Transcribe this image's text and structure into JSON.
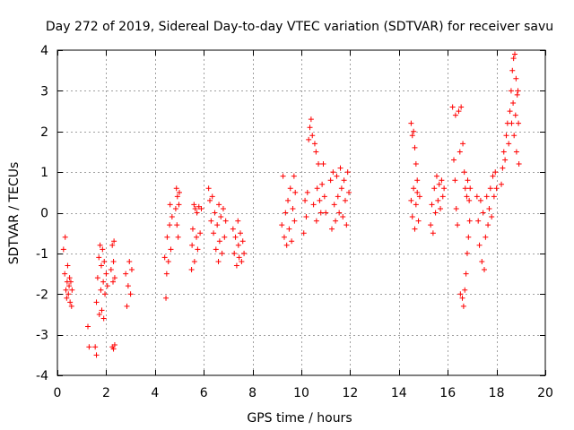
{
  "chart_data": {
    "type": "scatter",
    "title": "Day 272 of 2019, Sidereal Day-to-day VTEC variation (SDTVAR) for receiver savu",
    "xlabel": "GPS time / hours",
    "ylabel": "SDTVAR / TECUs",
    "xlim": [
      0,
      20
    ],
    "ylim": [
      -4,
      4
    ],
    "xticks": [
      0,
      2,
      4,
      6,
      8,
      10,
      12,
      14,
      16,
      18,
      20
    ],
    "yticks": [
      -4,
      -3,
      -2,
      -1,
      0,
      1,
      2,
      3,
      4
    ],
    "xtick_labels": [
      "0",
      "2",
      "4",
      "6",
      "8",
      "10",
      "12",
      "14",
      "16",
      "18",
      "20"
    ],
    "ytick_labels": [
      "-4",
      "-3",
      "-2",
      "-1",
      "0",
      "1",
      "2",
      "3",
      "4"
    ],
    "grid": true,
    "marker": "+",
    "color": "#ff0000",
    "series": [
      {
        "name": "savu",
        "points": [
          [
            0.25,
            -0.9
          ],
          [
            0.3,
            -1.5
          ],
          [
            0.32,
            -0.6
          ],
          [
            0.35,
            -1.9
          ],
          [
            0.38,
            -2.1
          ],
          [
            0.4,
            -1.7
          ],
          [
            0.42,
            -1.3
          ],
          [
            0.45,
            -2.0
          ],
          [
            0.48,
            -1.8
          ],
          [
            0.5,
            -1.6
          ],
          [
            0.52,
            -2.2
          ],
          [
            0.55,
            -1.7
          ],
          [
            0.58,
            -2.3
          ],
          [
            0.6,
            -1.9
          ],
          [
            1.25,
            -2.8
          ],
          [
            1.3,
            -3.3
          ],
          [
            1.55,
            -3.3
          ],
          [
            1.6,
            -3.5
          ],
          [
            1.6,
            -2.2
          ],
          [
            1.65,
            -1.6
          ],
          [
            1.7,
            -1.1
          ],
          [
            1.72,
            -2.5
          ],
          [
            1.75,
            -0.8
          ],
          [
            1.78,
            -1.9
          ],
          [
            1.8,
            -1.3
          ],
          [
            1.82,
            -2.4
          ],
          [
            1.85,
            -0.9
          ],
          [
            1.88,
            -1.7
          ],
          [
            1.9,
            -2.6
          ],
          [
            1.92,
            -1.2
          ],
          [
            1.95,
            -2.0
          ],
          [
            2.0,
            -1.5
          ],
          [
            2.05,
            -1.8
          ],
          [
            2.2,
            -1.4
          ],
          [
            2.25,
            -0.8
          ],
          [
            2.28,
            -1.7
          ],
          [
            2.3,
            -1.2
          ],
          [
            2.32,
            -0.7
          ],
          [
            2.35,
            -1.6
          ],
          [
            2.25,
            -3.3
          ],
          [
            2.3,
            -3.35
          ],
          [
            2.35,
            -3.25
          ],
          [
            2.8,
            -1.5
          ],
          [
            2.85,
            -2.3
          ],
          [
            2.9,
            -1.8
          ],
          [
            2.95,
            -1.2
          ],
          [
            3.0,
            -2.0
          ],
          [
            3.05,
            -1.4
          ],
          [
            4.4,
            -1.1
          ],
          [
            4.45,
            -2.1
          ],
          [
            4.48,
            -1.5
          ],
          [
            4.5,
            -0.6
          ],
          [
            4.55,
            -1.2
          ],
          [
            4.6,
            -0.3
          ],
          [
            4.62,
            0.2
          ],
          [
            4.65,
            -0.9
          ],
          [
            4.7,
            -0.1
          ],
          [
            4.85,
            0.1
          ],
          [
            4.88,
            0.6
          ],
          [
            4.9,
            -0.3
          ],
          [
            4.92,
            0.4
          ],
          [
            4.95,
            -0.6
          ],
          [
            4.98,
            0.2
          ],
          [
            5.0,
            0.5
          ],
          [
            5.5,
            -1.4
          ],
          [
            5.52,
            -0.8
          ],
          [
            5.55,
            -0.4
          ],
          [
            5.6,
            0.2
          ],
          [
            5.62,
            -1.2
          ],
          [
            5.65,
            0.1
          ],
          [
            5.7,
            -0.6
          ],
          [
            5.72,
            0.0
          ],
          [
            5.75,
            -0.9
          ],
          [
            5.8,
            0.15
          ],
          [
            5.85,
            -0.5
          ],
          [
            5.9,
            0.1
          ],
          [
            6.2,
            0.6
          ],
          [
            6.25,
            0.3
          ],
          [
            6.3,
            -0.2
          ],
          [
            6.35,
            0.4
          ],
          [
            6.4,
            -0.5
          ],
          [
            6.45,
            0.0
          ],
          [
            6.5,
            -0.9
          ],
          [
            6.55,
            -0.3
          ],
          [
            6.6,
            -1.2
          ],
          [
            6.62,
            0.2
          ],
          [
            6.65,
            -0.7
          ],
          [
            6.7,
            -0.1
          ],
          [
            6.75,
            -1.0
          ],
          [
            6.8,
            0.1
          ],
          [
            6.85,
            -0.6
          ],
          [
            6.9,
            -0.2
          ],
          [
            7.2,
            -0.4
          ],
          [
            7.25,
            -1.0
          ],
          [
            7.3,
            -0.6
          ],
          [
            7.35,
            -1.3
          ],
          [
            7.4,
            -0.2
          ],
          [
            7.42,
            -0.8
          ],
          [
            7.45,
            -1.1
          ],
          [
            7.5,
            -0.5
          ],
          [
            7.55,
            -1.2
          ],
          [
            7.6,
            -0.7
          ],
          [
            7.65,
            -1.0
          ],
          [
            9.2,
            -0.3
          ],
          [
            9.25,
            0.9
          ],
          [
            9.3,
            -0.6
          ],
          [
            9.35,
            0.0
          ],
          [
            9.4,
            -0.8
          ],
          [
            9.45,
            0.3
          ],
          [
            9.5,
            -0.4
          ],
          [
            9.55,
            0.6
          ],
          [
            9.6,
            -0.7
          ],
          [
            9.65,
            0.1
          ],
          [
            9.7,
            0.9
          ],
          [
            9.72,
            -0.2
          ],
          [
            9.75,
            0.5
          ],
          [
            10.1,
            -0.5
          ],
          [
            10.15,
            0.3
          ],
          [
            10.2,
            -0.1
          ],
          [
            10.25,
            0.5
          ],
          [
            10.3,
            1.8
          ],
          [
            10.35,
            2.1
          ],
          [
            10.4,
            2.3
          ],
          [
            10.45,
            1.9
          ],
          [
            10.5,
            0.2
          ],
          [
            10.55,
            1.7
          ],
          [
            10.6,
            1.5
          ],
          [
            10.62,
            -0.2
          ],
          [
            10.65,
            0.6
          ],
          [
            10.7,
            1.2
          ],
          [
            10.75,
            0.3
          ],
          [
            10.8,
            0.0
          ],
          [
            10.85,
            0.7
          ],
          [
            10.9,
            1.2
          ],
          [
            10.95,
            0.4
          ],
          [
            11.0,
            0.0
          ],
          [
            11.2,
            0.8
          ],
          [
            11.25,
            -0.4
          ],
          [
            11.3,
            1.0
          ],
          [
            11.35,
            0.2
          ],
          [
            11.4,
            -0.2
          ],
          [
            11.45,
            0.9
          ],
          [
            11.5,
            0.4
          ],
          [
            11.55,
            0.0
          ],
          [
            11.6,
            1.1
          ],
          [
            11.65,
            0.6
          ],
          [
            11.7,
            -0.1
          ],
          [
            11.75,
            0.8
          ],
          [
            11.8,
            0.3
          ],
          [
            11.85,
            -0.3
          ],
          [
            11.9,
            1.0
          ],
          [
            11.95,
            0.5
          ],
          [
            14.5,
            2.2
          ],
          [
            14.55,
            1.9
          ],
          [
            14.6,
            2.0
          ],
          [
            14.65,
            1.6
          ],
          [
            14.7,
            1.2
          ],
          [
            14.75,
            0.8
          ],
          [
            14.5,
            0.3
          ],
          [
            14.55,
            -0.1
          ],
          [
            14.6,
            0.6
          ],
          [
            14.65,
            -0.4
          ],
          [
            14.7,
            0.2
          ],
          [
            14.75,
            0.5
          ],
          [
            14.8,
            -0.2
          ],
          [
            14.85,
            0.4
          ],
          [
            15.3,
            -0.3
          ],
          [
            15.35,
            0.2
          ],
          [
            15.4,
            -0.5
          ],
          [
            15.45,
            0.6
          ],
          [
            15.5,
            0.0
          ],
          [
            15.55,
            0.9
          ],
          [
            15.6,
            0.3
          ],
          [
            15.65,
            0.7
          ],
          [
            15.7,
            0.1
          ],
          [
            15.75,
            0.8
          ],
          [
            15.8,
            0.4
          ],
          [
            15.85,
            0.6
          ],
          [
            16.2,
            2.6
          ],
          [
            16.25,
            1.3
          ],
          [
            16.3,
            0.8
          ],
          [
            16.32,
            2.4
          ],
          [
            16.35,
            0.1
          ],
          [
            16.4,
            -0.3
          ],
          [
            16.45,
            2.5
          ],
          [
            16.5,
            1.5
          ],
          [
            16.52,
            -2.0
          ],
          [
            16.55,
            2.6
          ],
          [
            16.6,
            -2.1
          ],
          [
            16.62,
            1.7
          ],
          [
            16.65,
            -2.3
          ],
          [
            16.68,
            1.0
          ],
          [
            16.7,
            -1.9
          ],
          [
            16.72,
            0.6
          ],
          [
            16.75,
            -1.5
          ],
          [
            16.78,
            0.4
          ],
          [
            16.8,
            -1.0
          ],
          [
            16.82,
            0.8
          ],
          [
            16.85,
            -0.6
          ],
          [
            16.88,
            0.3
          ],
          [
            16.9,
            -0.2
          ],
          [
            16.92,
            0.6
          ],
          [
            17.2,
            0.4
          ],
          [
            17.25,
            -0.2
          ],
          [
            17.3,
            -0.8
          ],
          [
            17.35,
            0.3
          ],
          [
            17.4,
            -1.2
          ],
          [
            17.45,
            0.0
          ],
          [
            17.5,
            -1.4
          ],
          [
            17.55,
            -0.6
          ],
          [
            17.6,
            0.4
          ],
          [
            17.65,
            -0.3
          ],
          [
            17.7,
            0.1
          ],
          [
            17.75,
            0.6
          ],
          [
            17.8,
            -0.1
          ],
          [
            17.85,
            0.9
          ],
          [
            17.9,
            0.4
          ],
          [
            17.95,
            1.0
          ],
          [
            18.0,
            0.6
          ],
          [
            18.2,
            0.7
          ],
          [
            18.25,
            1.1
          ],
          [
            18.3,
            1.5
          ],
          [
            18.35,
            1.3
          ],
          [
            18.4,
            1.9
          ],
          [
            18.45,
            2.2
          ],
          [
            18.5,
            1.7
          ],
          [
            18.55,
            2.5
          ],
          [
            18.6,
            3.0
          ],
          [
            18.62,
            2.2
          ],
          [
            18.65,
            3.5
          ],
          [
            18.68,
            2.7
          ],
          [
            18.7,
            3.8
          ],
          [
            18.72,
            1.9
          ],
          [
            18.75,
            3.9
          ],
          [
            18.78,
            2.4
          ],
          [
            18.8,
            3.3
          ],
          [
            18.82,
            1.5
          ],
          [
            18.85,
            2.9
          ],
          [
            18.88,
            3.0
          ],
          [
            18.9,
            2.2
          ],
          [
            18.92,
            1.2
          ]
        ]
      }
    ]
  }
}
